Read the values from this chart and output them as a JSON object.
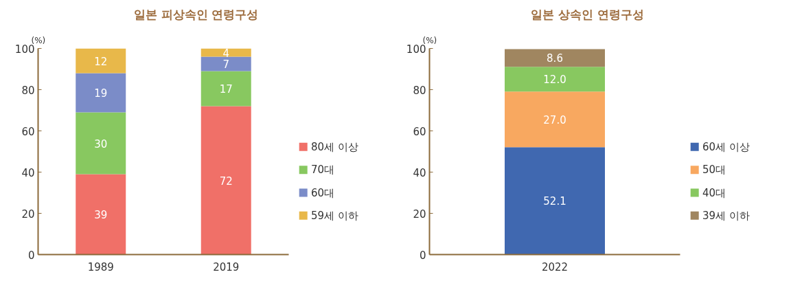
{
  "chart_data": [
    {
      "type": "bar",
      "title": "일본 피상속인 연령구성",
      "ylabel": "(%)",
      "categories": [
        "1989",
        "2019"
      ],
      "stacked": true,
      "data_labels": true,
      "legend": "right",
      "grid": false,
      "ylim": [
        0,
        100
      ],
      "yticks": [
        0,
        20,
        40,
        60,
        80,
        100
      ],
      "series": [
        {
          "name": "80세 이상",
          "color": "#f07068",
          "values": [
            39,
            72
          ]
        },
        {
          "name": "70대",
          "color": "#88c860",
          "values": [
            30,
            17
          ]
        },
        {
          "name": "60대",
          "color": "#7b8cc8",
          "values": [
            19,
            7
          ]
        },
        {
          "name": "59세 이하",
          "color": "#e8b84a",
          "values": [
            12,
            4
          ]
        }
      ]
    },
    {
      "type": "bar",
      "title": "일본 상속인 연령구성",
      "ylabel": "(%)",
      "categories": [
        "2022"
      ],
      "stacked": true,
      "legend": "right",
      "grid": false,
      "ylim": [
        0,
        100
      ],
      "yticks": [
        0,
        20,
        40,
        60,
        80,
        100
      ],
      "series": [
        {
          "name": "60세 이상",
          "color": "#4068b0",
          "values": [
            52.1
          ],
          "value_labels": [
            "52.1"
          ]
        },
        {
          "name": "50대",
          "color": "#f8a860",
          "values": [
            27.0
          ],
          "value_labels": [
            "27.0"
          ]
        },
        {
          "name": "40대",
          "color": "#88c860",
          "values": [
            12.0
          ],
          "value_labels": [
            "12.0"
          ]
        },
        {
          "name": "39세 이하",
          "color": "#a08660",
          "values": [
            8.6
          ],
          "value_labels": [
            "8.6"
          ]
        }
      ]
    }
  ]
}
